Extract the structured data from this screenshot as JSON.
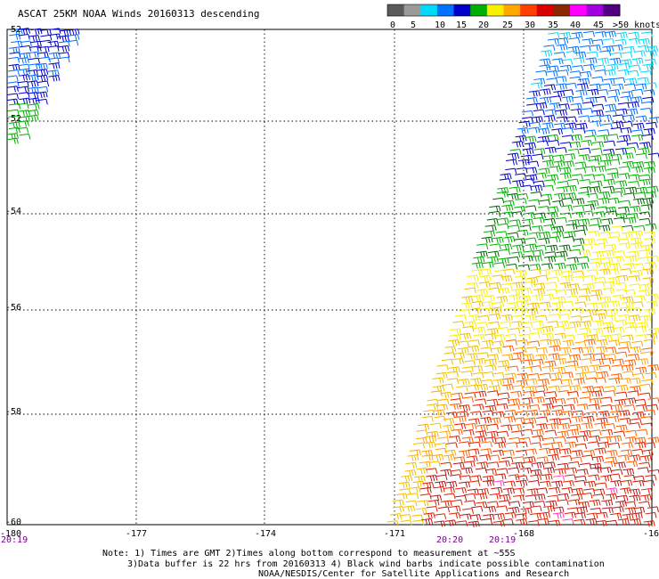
{
  "title": "ASCAT 25KM NOAA Winds 20160313 descending",
  "legend": {
    "ticks": [
      "0",
      "5",
      "10",
      "15",
      "20",
      "25",
      "30",
      "35",
      "40",
      "45",
      ">50 knots"
    ],
    "colors": [
      "#5a5a5a",
      "#9a9a9a",
      "#00d8f8",
      "#0070ff",
      "#0000c8",
      "#00b000",
      "#f8f000",
      "#ffa800",
      "#ff4000",
      "#d80000",
      "#8b2800",
      "#ff00ff",
      "#a000e0",
      "#500080"
    ]
  },
  "map": {
    "lat_labels": [
      "-52",
      "-52",
      "-54",
      "-56",
      "-58",
      "-60"
    ],
    "lon_labels": [
      "-180",
      "-177",
      "-174",
      "-171",
      "-168",
      "-16"
    ],
    "time_labels": [
      "20:19",
      "20:20",
      "20:19"
    ]
  },
  "notes": {
    "line1": "Note: 1) Times are GMT 2)Times along bottom correspond to measurement at ~55S",
    "line2": "3)Data buffer is 22 hrs from 20160313 4) Black wind barbs indicate possible contamination",
    "line3": "NOAA/NESDIS/Center for Satellite Applications and Research"
  }
}
